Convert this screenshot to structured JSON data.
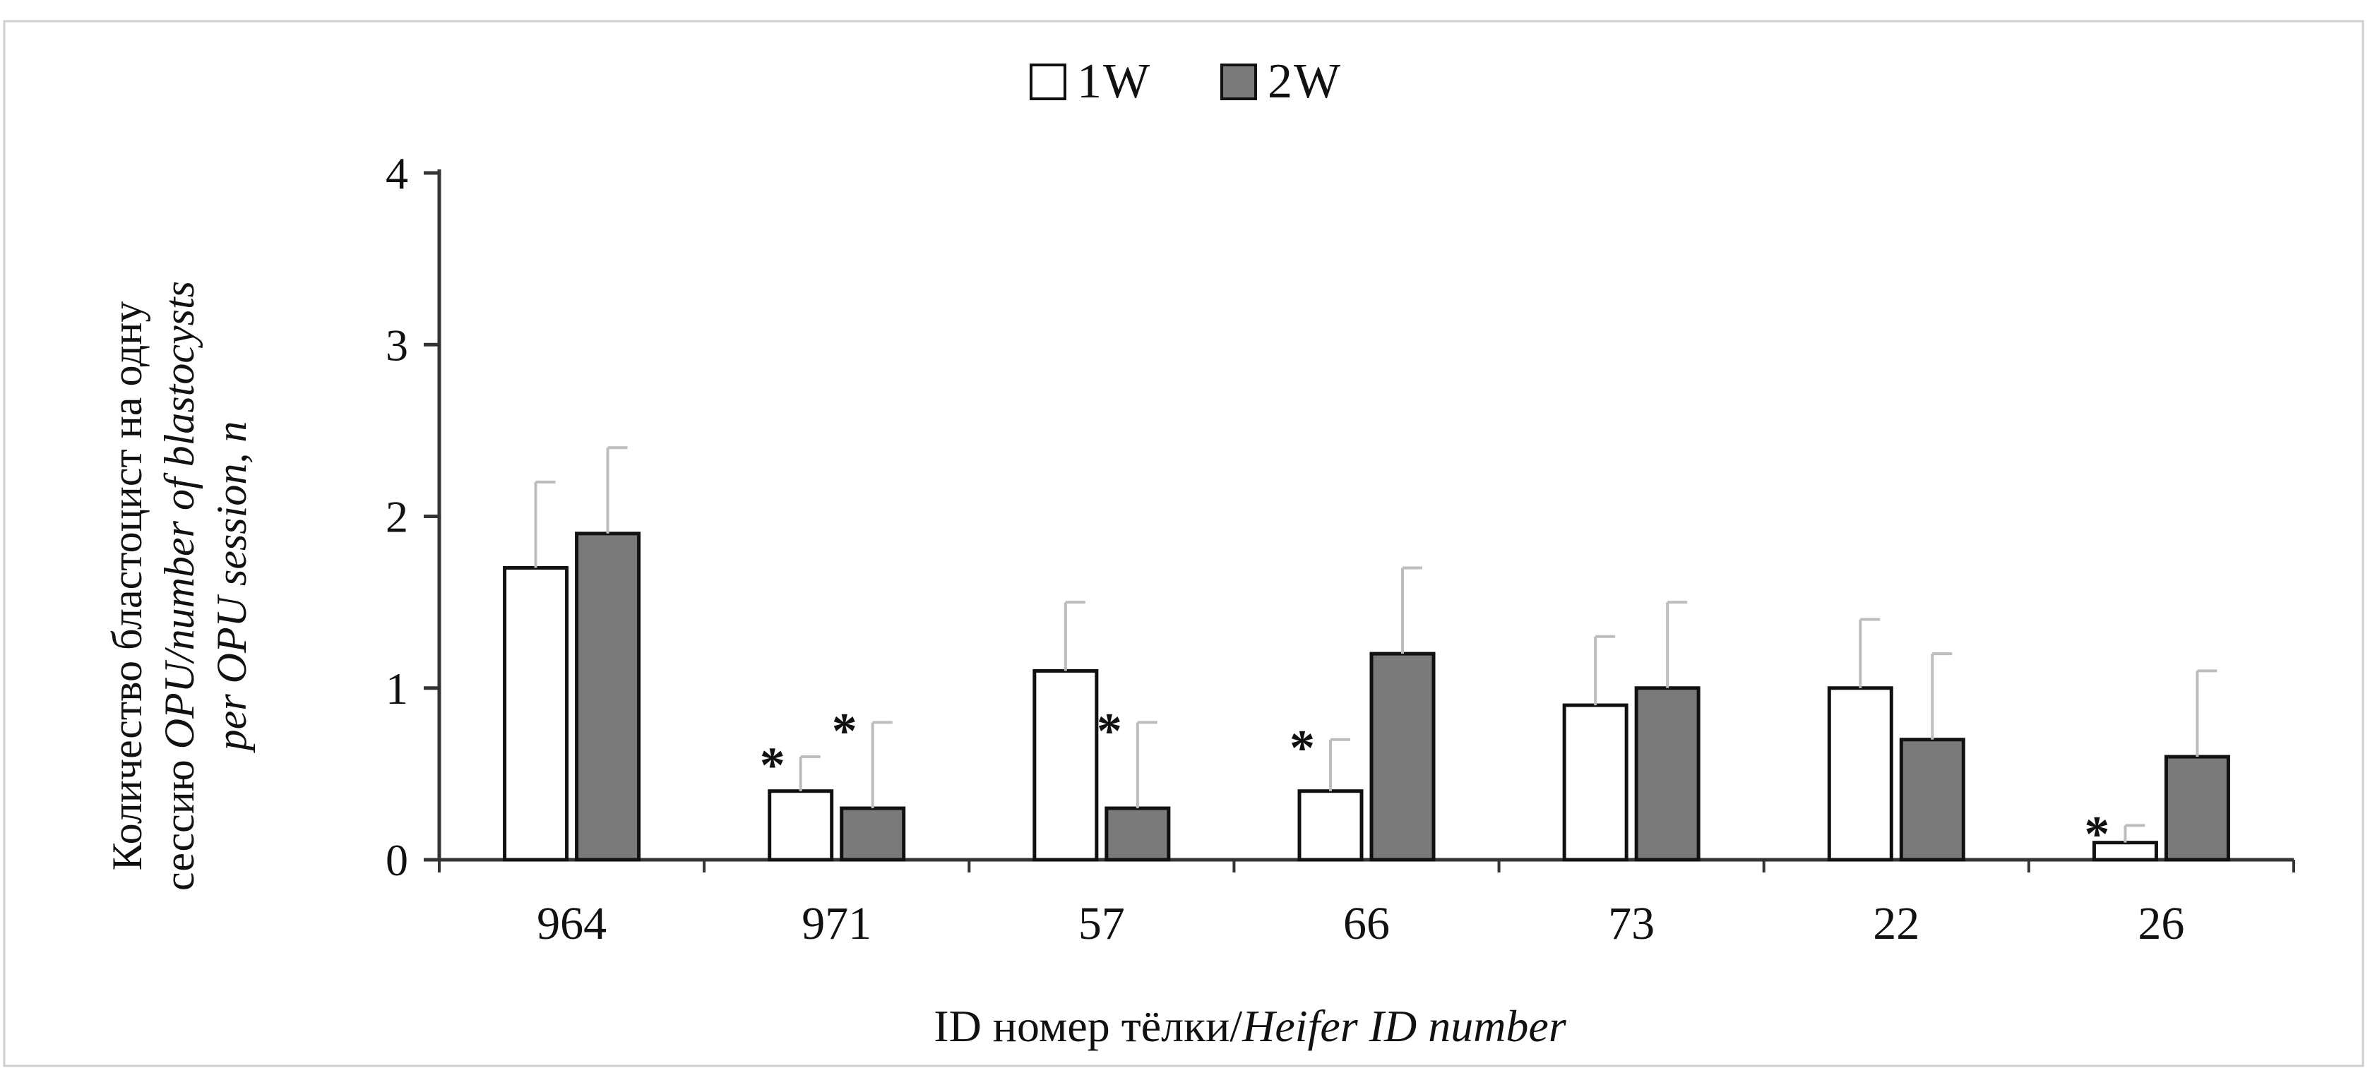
{
  "chart_data": {
    "type": "bar",
    "categories": [
      "964",
      "971",
      "57",
      "66",
      "73",
      "22",
      "26"
    ],
    "series": [
      {
        "name": "1W",
        "color": "#ffffff",
        "values": [
          1.7,
          0.4,
          1.1,
          0.4,
          0.9,
          1.0,
          0.1
        ],
        "errors": [
          0.5,
          0.2,
          0.4,
          0.3,
          0.4,
          0.4,
          0.1
        ],
        "stars": [
          false,
          true,
          false,
          true,
          false,
          false,
          true
        ]
      },
      {
        "name": "2W",
        "color": "#7a7a7a",
        "values": [
          1.9,
          0.3,
          0.3,
          1.2,
          1.0,
          0.7,
          0.6
        ],
        "errors": [
          0.5,
          0.5,
          0.5,
          0.5,
          0.5,
          0.5,
          0.5
        ],
        "stars": [
          false,
          true,
          true,
          false,
          false,
          false,
          false
        ]
      }
    ],
    "star_symbol": "*",
    "ylim": [
      0,
      4
    ],
    "yticks": [
      0,
      1,
      2,
      3,
      4
    ],
    "ylabel_line1": "Количество бластоцист на одну",
    "ylabel_line2_plain": "сессию ",
    "ylabel_line2_italic": "OPU/number of blastocysts",
    "ylabel_line3_italic": "per OPU session, n",
    "xlabel_plain": "ID номер тёлки/",
    "xlabel_italic": "Heifer ID number",
    "legend_position": "top-center",
    "grid": false
  }
}
